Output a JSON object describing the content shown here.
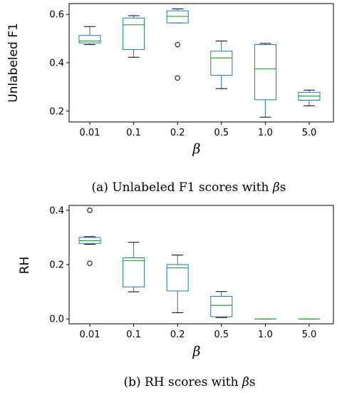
{
  "chart_data": [
    {
      "type": "box",
      "ylabel": "Unlabeled F1",
      "xlabel": "β",
      "caption": {
        "prefix": "(a) Unlabeled F1 scores with ",
        "symbol": "β",
        "suffix": "s"
      },
      "categories": [
        "0.01",
        "0.1",
        "0.2",
        "0.5",
        "1.0",
        "5.0"
      ],
      "yticks": [
        "0.2",
        "0.4",
        "0.6"
      ],
      "ytick_values": [
        0.2,
        0.4,
        0.6
      ],
      "ylim": [
        0.155,
        0.645
      ],
      "boxes": [
        {
          "whislo": 0.475,
          "q1": 0.482,
          "med": 0.49,
          "q3": 0.513,
          "whishi": 0.55,
          "fliers": []
        },
        {
          "whislo": 0.423,
          "q1": 0.455,
          "med": 0.557,
          "q3": 0.585,
          "whishi": 0.595,
          "fliers": []
        },
        {
          "whislo": 0.565,
          "q1": 0.565,
          "med": 0.592,
          "q3": 0.615,
          "whishi": 0.623,
          "fliers": [
            0.475,
            0.337
          ]
        },
        {
          "whislo": 0.293,
          "q1": 0.348,
          "med": 0.42,
          "q3": 0.448,
          "whishi": 0.49,
          "fliers": []
        },
        {
          "whislo": 0.175,
          "q1": 0.247,
          "med": 0.375,
          "q3": 0.475,
          "whishi": 0.48,
          "fliers": []
        },
        {
          "whislo": 0.222,
          "q1": 0.245,
          "med": 0.262,
          "q3": 0.278,
          "whishi": 0.287,
          "fliers": []
        }
      ]
    },
    {
      "type": "box",
      "ylabel": "RH",
      "xlabel": "β",
      "caption": {
        "prefix": "(b) RH scores with ",
        "symbol": "β",
        "suffix": "s"
      },
      "categories": [
        "0.01",
        "0.1",
        "0.2",
        "0.5",
        "1.0",
        "5.0"
      ],
      "yticks": [
        "0.0",
        "0.2",
        "0.4"
      ],
      "ytick_values": [
        0.0,
        0.2,
        0.4
      ],
      "ylim": [
        -0.018,
        0.418
      ],
      "boxes": [
        {
          "whislo": 0.275,
          "q1": 0.278,
          "med": 0.288,
          "q3": 0.3,
          "whishi": 0.303,
          "fliers": [
            0.4,
            0.205
          ]
        },
        {
          "whislo": 0.1,
          "q1": 0.118,
          "med": 0.215,
          "q3": 0.225,
          "whishi": 0.282,
          "fliers": []
        },
        {
          "whislo": 0.023,
          "q1": 0.103,
          "med": 0.188,
          "q3": 0.2,
          "whishi": 0.235,
          "fliers": []
        },
        {
          "whislo": 0.005,
          "q1": 0.008,
          "med": 0.05,
          "q3": 0.083,
          "whishi": 0.101,
          "fliers": []
        },
        {
          "whislo": 0.0,
          "q1": 0.0,
          "med": 0.0,
          "q3": 0.0,
          "whishi": 0.0,
          "fliers": []
        },
        {
          "whislo": 0.0,
          "q1": 0.0,
          "med": 0.0,
          "q3": 0.0,
          "whishi": 0.0,
          "fliers": []
        }
      ]
    }
  ],
  "colors": {
    "box": "#1f77b4",
    "median": "#2ca02c",
    "axis": "#000000"
  }
}
